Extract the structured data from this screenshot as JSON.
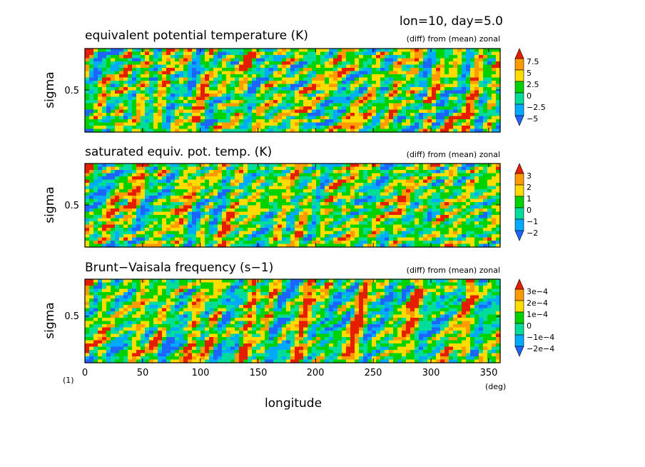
{
  "header": {
    "title": "lon=10, day=5.0",
    "figure_number": "(1)"
  },
  "colors": {
    "palette": [
      "#1e64ff",
      "#00aaff",
      "#00dc9a",
      "#00d200",
      "#ffdc00",
      "#ff9b00",
      "#e61e00"
    ]
  },
  "chart_data": [
    {
      "type": "heatmap",
      "title": "equivalent potential temperature (K)",
      "subtitle": "(diff) from (mean) zonal",
      "xlabel": "longitude",
      "ylabel": "sigma",
      "xlim": [
        0,
        360
      ],
      "ylim": [
        0,
        1
      ],
      "yticks": [
        0.5
      ],
      "ytick_labels": [
        "0.5"
      ],
      "colorbar": {
        "levels": [
          -5,
          -2.5,
          0,
          2.5,
          5,
          7.5
        ],
        "labels": [
          "7.5",
          "5",
          "2.5",
          "0",
          "−2.5",
          "−5"
        ]
      },
      "seed": 7
    },
    {
      "type": "heatmap",
      "title": "saturated equiv. pot. temp. (K)",
      "subtitle": "(diff) from (mean) zonal",
      "xlabel": "longitude",
      "ylabel": "sigma",
      "xlim": [
        0,
        360
      ],
      "ylim": [
        0,
        1
      ],
      "yticks": [
        0.5
      ],
      "ytick_labels": [
        "0.5"
      ],
      "colorbar": {
        "levels": [
          -2,
          -1,
          0,
          1,
          2,
          3
        ],
        "labels": [
          "3",
          "2",
          "1",
          "0",
          "−1",
          "−2"
        ]
      },
      "seed": 19
    },
    {
      "type": "heatmap",
      "title": "Brunt−Vaisala frequency (s−1)",
      "subtitle": "(diff) from (mean) zonal",
      "xlabel": "longitude",
      "ylabel": "sigma",
      "xlim": [
        0,
        360
      ],
      "ylim": [
        0,
        1
      ],
      "yticks": [
        0.5
      ],
      "ytick_labels": [
        "0.5"
      ],
      "colorbar": {
        "levels": [
          -0.0002,
          -0.0001,
          0,
          0.0001,
          0.0002,
          0.0003
        ],
        "labels": [
          "3e−4",
          "2e−4",
          "1e−4",
          "0",
          "−1e−4",
          "−2e−4"
        ]
      },
      "seed": 31
    }
  ],
  "x_axis": {
    "ticks": [
      0,
      50,
      100,
      150,
      200,
      250,
      300,
      350
    ],
    "tick_labels": [
      "0",
      "50",
      "100",
      "150",
      "200",
      "250",
      "300",
      "350"
    ],
    "label": "longitude",
    "unit": "(deg)"
  }
}
